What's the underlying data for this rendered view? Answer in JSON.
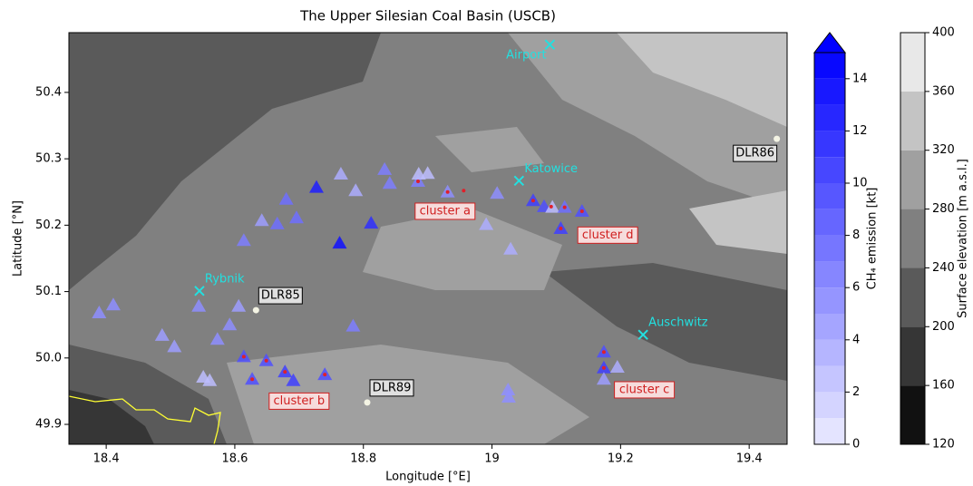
{
  "chart_data": {
    "type": "scatter",
    "title": "The Upper Silesian Coal Basin (USCB)",
    "x_label": "Longitude [°E]",
    "y_label": "Latitude [°N]",
    "xlim": [
      18.342,
      19.459
    ],
    "ylim": [
      49.87,
      50.49
    ],
    "xticks": [
      18.4,
      18.6,
      18.8,
      19.0,
      19.2,
      19.4
    ],
    "yticks": [
      49.9,
      {
        "value": 50.0,
        "label": "50.0"
      },
      50.1,
      50.2,
      50.3,
      50.4
    ],
    "points": {
      "x": [
        18.389,
        18.411,
        18.487,
        18.506,
        18.544,
        18.573,
        18.592,
        18.606,
        18.551,
        18.561,
        18.614,
        18.627,
        18.649,
        18.678,
        18.691,
        18.74,
        18.784,
        18.614,
        18.642,
        18.666,
        18.68,
        18.696,
        18.727,
        18.765,
        18.788,
        18.763,
        18.812,
        18.833,
        18.841,
        18.885,
        18.886,
        18.9,
        18.931,
        19.008,
        18.991,
        19.029,
        19.064,
        19.081,
        19.094,
        19.113,
        19.107,
        19.14,
        19.025,
        19.026,
        19.174,
        19.174,
        19.174,
        19.195
      ],
      "y": [
        50.068,
        50.08,
        50.034,
        50.017,
        50.078,
        50.028,
        50.05,
        50.078,
        49.971,
        49.966,
        50.002,
        49.968,
        49.996,
        49.979,
        49.966,
        49.975,
        50.048,
        50.177,
        50.207,
        50.202,
        50.239,
        50.211,
        50.257,
        50.277,
        50.252,
        50.173,
        50.203,
        50.284,
        50.263,
        50.266,
        50.277,
        50.278,
        50.25,
        50.248,
        50.201,
        50.164,
        50.237,
        50.228,
        50.227,
        50.227,
        50.195,
        50.221,
        49.952,
        49.941,
        50.009,
        49.985,
        49.968,
        49.986
      ],
      "values": [
        6,
        6,
        5,
        5,
        6,
        6,
        6,
        5,
        3,
        3,
        10,
        10,
        10,
        11,
        11,
        10,
        7,
        7,
        5,
        8,
        8,
        8,
        13,
        4,
        4,
        14,
        12,
        7,
        7,
        7,
        3,
        3,
        6,
        6,
        4,
        4,
        11,
        10,
        3,
        8,
        11,
        10,
        6,
        6,
        10,
        11,
        5,
        4
      ]
    },
    "cluster_markers": {
      "color": "#e0202a",
      "x": [
        18.614,
        18.627,
        18.649,
        18.678,
        18.74,
        18.885,
        18.931,
        18.956,
        19.064,
        19.092,
        19.113,
        19.107,
        19.14,
        19.174,
        19.174
      ],
      "y": [
        50.002,
        49.968,
        49.996,
        49.979,
        49.975,
        50.266,
        50.25,
        50.252,
        50.237,
        50.228,
        50.227,
        50.195,
        50.221,
        50.009,
        49.985
      ]
    },
    "places": [
      {
        "label": "Airport",
        "x": 19.09,
        "y": 50.472
      },
      {
        "label": "Katowice",
        "x": 19.042,
        "y": 50.267
      },
      {
        "label": "Rybnik",
        "x": 18.545,
        "y": 50.101
      },
      {
        "label": "Auschwitz",
        "x": 19.235,
        "y": 50.035
      }
    ],
    "stations": [
      {
        "label": "DLR85",
        "x": 18.633,
        "y": 50.072
      },
      {
        "label": "DLR89",
        "x": 18.806,
        "y": 49.933
      },
      {
        "label": "DLR86",
        "x": 19.443,
        "y": 50.33
      }
    ],
    "clusters": [
      {
        "label": "cluster a",
        "x": 18.927,
        "y": 50.221
      },
      {
        "label": "cluster b",
        "x": 18.7,
        "y": 49.935
      },
      {
        "label": "cluster c",
        "x": 19.237,
        "y": 49.952
      },
      {
        "label": "cluster d",
        "x": 19.18,
        "y": 50.185
      }
    ],
    "emission_colorbar": {
      "label": "CH₄ emission [kt]",
      "lim": [
        0,
        15
      ],
      "ticks": [
        0,
        2,
        4,
        6,
        8,
        10,
        12,
        14
      ],
      "extend": "max",
      "cmap": [
        "#ececff",
        "#0000ff"
      ]
    },
    "elevation_colorbar": {
      "label": "Surface elevation [m a.s.l.]",
      "lim": [
        120,
        400
      ],
      "ticks": [
        120,
        160,
        200,
        240,
        280,
        320,
        360,
        400
      ],
      "colors": [
        "#111111",
        "#363636",
        "#5a5a5a",
        "#808080",
        "#a0a0a0",
        "#c4c4c4",
        "#e8e8e8"
      ]
    }
  }
}
